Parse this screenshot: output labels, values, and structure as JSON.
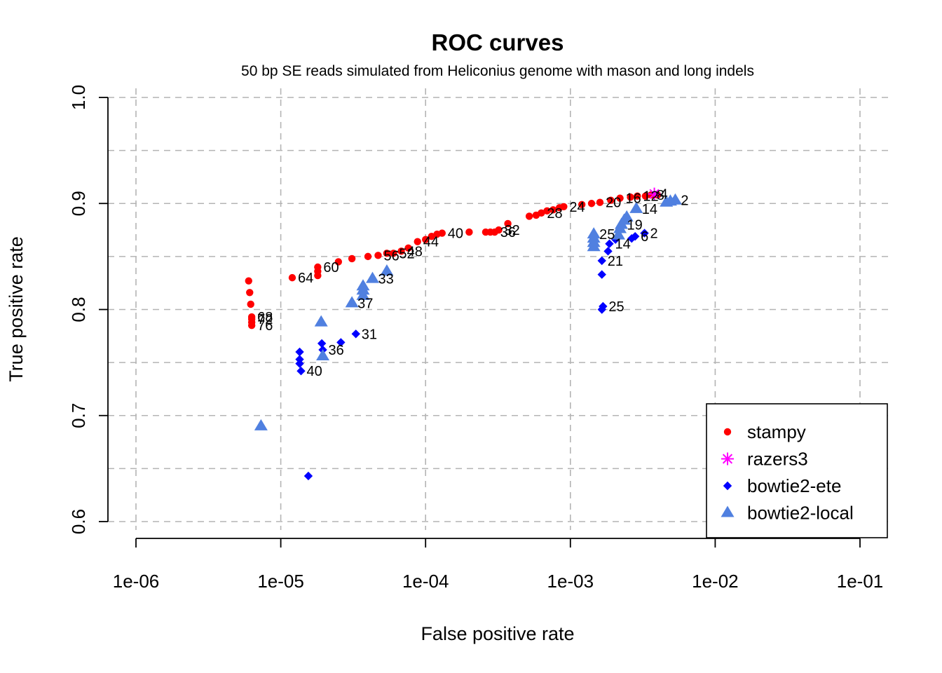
{
  "chart_data": {
    "type": "scatter",
    "title": "ROC curves",
    "subtitle": "50 bp SE reads simulated from Heliconius genome with mason and long indels",
    "xlabel": "False positive rate",
    "ylabel": "True positive rate",
    "xscale": "log",
    "xlim": [
      1e-06,
      0.1
    ],
    "ylim": [
      0.6,
      1.0
    ],
    "x_ticks": [
      1e-06,
      1e-05,
      0.0001,
      0.001,
      0.01,
      0.1
    ],
    "x_tick_labels": [
      "1e-06",
      "1e-05",
      "1e-04",
      "1e-03",
      "1e-02",
      "1e-01"
    ],
    "y_ticks": [
      0.6,
      0.7,
      0.8,
      0.9,
      1.0
    ],
    "y_tick_labels": [
      "0.6",
      "0.7",
      "0.8",
      "0.9",
      "1.0"
    ],
    "y_grid": [
      0.6,
      0.65,
      0.7,
      0.75,
      0.8,
      0.85,
      0.9,
      0.95,
      1.0
    ],
    "grid": true,
    "legend_position": "bottom-right",
    "legend": [
      {
        "name": "stampy",
        "marker": "circle",
        "color": "#ff0000"
      },
      {
        "name": "razers3",
        "marker": "asterisk",
        "color": "#ff00ff"
      },
      {
        "name": "bowtie2-ete",
        "marker": "diamond",
        "color": "#0000ff"
      },
      {
        "name": "bowtie2-local",
        "marker": "triangle",
        "color": "#5080e0"
      }
    ],
    "series": [
      {
        "name": "stampy",
        "marker": "circle",
        "color": "#ff0000",
        "points": [
          {
            "x": 6e-06,
            "y": 0.827
          },
          {
            "x": 6.1e-06,
            "y": 0.816
          },
          {
            "x": 6.2e-06,
            "y": 0.805
          },
          {
            "x": 6.3e-06,
            "y": 0.793,
            "label": "68"
          },
          {
            "x": 6.3e-06,
            "y": 0.791,
            "label": "72"
          },
          {
            "x": 6.3e-06,
            "y": 0.788
          },
          {
            "x": 6.3e-06,
            "y": 0.785,
            "label": "76"
          },
          {
            "x": 1.2e-05,
            "y": 0.83,
            "label": "64"
          },
          {
            "x": 1.8e-05,
            "y": 0.84,
            "label": "60"
          },
          {
            "x": 1.8e-05,
            "y": 0.836
          },
          {
            "x": 1.8e-05,
            "y": 0.832
          },
          {
            "x": 2.5e-05,
            "y": 0.845
          },
          {
            "x": 3.1e-05,
            "y": 0.848
          },
          {
            "x": 4e-05,
            "y": 0.85
          },
          {
            "x": 4.7e-05,
            "y": 0.851,
            "label": "56"
          },
          {
            "x": 5.4e-05,
            "y": 0.853
          },
          {
            "x": 6e-05,
            "y": 0.853,
            "label": "52"
          },
          {
            "x": 6.8e-05,
            "y": 0.855,
            "label": "48"
          },
          {
            "x": 7.6e-05,
            "y": 0.858
          },
          {
            "x": 8.8e-05,
            "y": 0.864,
            "label": "44"
          },
          {
            "x": 0.0001,
            "y": 0.866
          },
          {
            "x": 0.00011,
            "y": 0.869
          },
          {
            "x": 0.00012,
            "y": 0.871
          },
          {
            "x": 0.00013,
            "y": 0.872,
            "label": "40"
          },
          {
            "x": 0.0002,
            "y": 0.873
          },
          {
            "x": 0.00026,
            "y": 0.873
          },
          {
            "x": 0.00028,
            "y": 0.873
          },
          {
            "x": 0.0003,
            "y": 0.873,
            "label": "36"
          },
          {
            "x": 0.00032,
            "y": 0.875,
            "label": "32"
          },
          {
            "x": 0.00037,
            "y": 0.881
          },
          {
            "x": 0.00052,
            "y": 0.888
          },
          {
            "x": 0.00058,
            "y": 0.889
          },
          {
            "x": 0.00063,
            "y": 0.891,
            "label": "28"
          },
          {
            "x": 0.00069,
            "y": 0.893
          },
          {
            "x": 0.00076,
            "y": 0.894
          },
          {
            "x": 0.00084,
            "y": 0.896
          },
          {
            "x": 0.0009,
            "y": 0.897,
            "label": "24"
          },
          {
            "x": 0.0012,
            "y": 0.899
          },
          {
            "x": 0.0014,
            "y": 0.9
          },
          {
            "x": 0.0016,
            "y": 0.901,
            "label": "20"
          },
          {
            "x": 0.0019,
            "y": 0.903
          },
          {
            "x": 0.0022,
            "y": 0.905,
            "label": "16"
          },
          {
            "x": 0.0026,
            "y": 0.906
          },
          {
            "x": 0.0029,
            "y": 0.907,
            "label": "12"
          },
          {
            "x": 0.0033,
            "y": 0.907
          },
          {
            "x": 0.0036,
            "y": 0.908,
            "label": "8"
          },
          {
            "x": 0.004,
            "y": 0.908
          }
        ]
      },
      {
        "name": "razers3",
        "marker": "asterisk",
        "color": "#ff00ff",
        "points": [
          {
            "x": 0.0038,
            "y": 0.909,
            "label": "4"
          }
        ]
      },
      {
        "name": "bowtie2-ete",
        "marker": "diamond",
        "color": "#0000ff",
        "points": [
          {
            "x": 1.55e-05,
            "y": 0.643
          },
          {
            "x": 1.35e-05,
            "y": 0.76
          },
          {
            "x": 1.35e-05,
            "y": 0.753
          },
          {
            "x": 1.35e-05,
            "y": 0.749
          },
          {
            "x": 1.38e-05,
            "y": 0.742,
            "label": "40"
          },
          {
            "x": 1.92e-05,
            "y": 0.768
          },
          {
            "x": 1.95e-05,
            "y": 0.762,
            "label": "36"
          },
          {
            "x": 2.6e-05,
            "y": 0.769
          },
          {
            "x": 3.3e-05,
            "y": 0.777,
            "label": "31"
          },
          {
            "x": 0.00165,
            "y": 0.8
          },
          {
            "x": 0.00168,
            "y": 0.803,
            "label": "25"
          },
          {
            "x": 0.00165,
            "y": 0.833
          },
          {
            "x": 0.00165,
            "y": 0.846,
            "label": "21"
          },
          {
            "x": 0.00182,
            "y": 0.855
          },
          {
            "x": 0.00186,
            "y": 0.862,
            "label": "14"
          },
          {
            "x": 0.00205,
            "y": 0.866
          },
          {
            "x": 0.00265,
            "y": 0.867
          },
          {
            "x": 0.0028,
            "y": 0.869,
            "label": "6"
          },
          {
            "x": 0.00325,
            "y": 0.872,
            "label": "2"
          }
        ]
      },
      {
        "name": "bowtie2-local",
        "marker": "triangle",
        "color": "#5080e0",
        "points": [
          {
            "x": 7.3e-06,
            "y": 0.69
          },
          {
            "x": 1.9e-05,
            "y": 0.788
          },
          {
            "x": 1.95e-05,
            "y": 0.756
          },
          {
            "x": 3.1e-05,
            "y": 0.806,
            "label": "37"
          },
          {
            "x": 3.7e-05,
            "y": 0.813
          },
          {
            "x": 3.7e-05,
            "y": 0.818
          },
          {
            "x": 3.7e-05,
            "y": 0.822
          },
          {
            "x": 4.3e-05,
            "y": 0.829,
            "label": "33"
          },
          {
            "x": 5.4e-05,
            "y": 0.836
          },
          {
            "x": 0.00145,
            "y": 0.859
          },
          {
            "x": 0.00145,
            "y": 0.863
          },
          {
            "x": 0.00145,
            "y": 0.867
          },
          {
            "x": 0.00145,
            "y": 0.871,
            "label": "25"
          },
          {
            "x": 0.00215,
            "y": 0.87
          },
          {
            "x": 0.0022,
            "y": 0.876
          },
          {
            "x": 0.00225,
            "y": 0.88,
            "label": "19"
          },
          {
            "x": 0.00235,
            "y": 0.884
          },
          {
            "x": 0.00245,
            "y": 0.887
          },
          {
            "x": 0.00285,
            "y": 0.895,
            "label": "14"
          },
          {
            "x": 0.0046,
            "y": 0.901
          },
          {
            "x": 0.0049,
            "y": 0.902
          },
          {
            "x": 0.0053,
            "y": 0.903,
            "label": "2"
          }
        ]
      }
    ]
  }
}
